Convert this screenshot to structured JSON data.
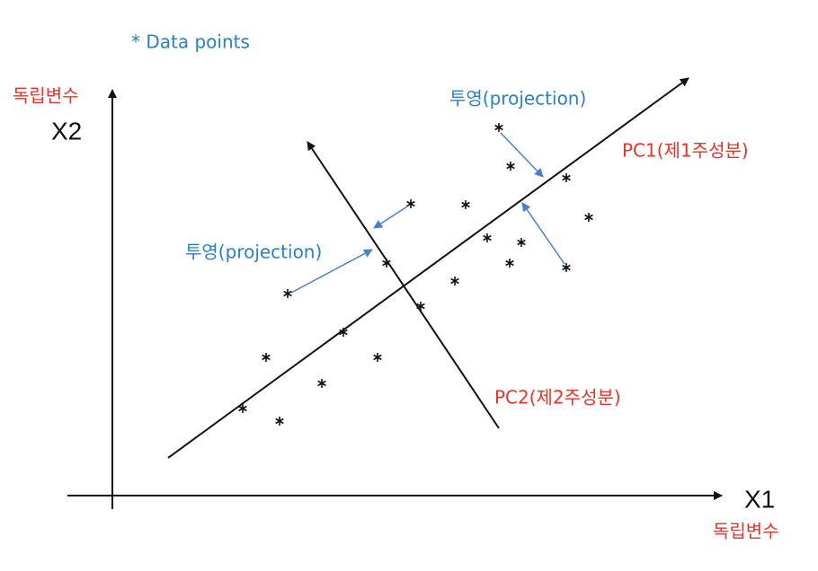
{
  "legend": "* Data points",
  "y_axis": {
    "name": "X2",
    "label": "독립변수"
  },
  "x_axis": {
    "name": "X1",
    "label": "독립변수"
  },
  "projection_labels": [
    "투영(projection)",
    "투영(projection)"
  ],
  "pc1_label": "PC1(제1주성분)",
  "pc2_label": "PC2(제2주성분)"
}
